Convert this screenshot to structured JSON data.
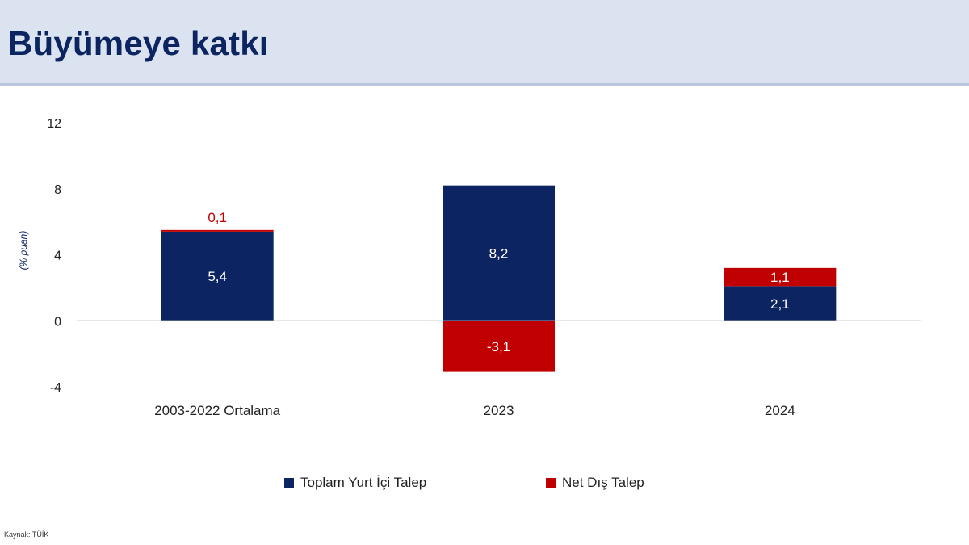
{
  "page": {
    "title": "Büyümeye katkı",
    "source": "Kaynak: TÜİK"
  },
  "colors": {
    "header_bg": "#dbe3f0",
    "domestic": "#0c2461",
    "external": "#c00000",
    "title": "#0c2560"
  },
  "chart_data": {
    "type": "bar",
    "stacked": true,
    "title": "Büyümeye katkı",
    "ylabel": "(% puan)",
    "xlabel": "",
    "ylim": [
      -4,
      12
    ],
    "yticks": [
      -4,
      0,
      4,
      8,
      12
    ],
    "categories": [
      "2003-2022 Ortalama",
      "2023",
      "2024"
    ],
    "series": [
      {
        "name": "Toplam Yurt İçi Talep",
        "values": [
          5.4,
          8.2,
          2.1
        ],
        "labels": [
          "5,4",
          "8,2",
          "2,1"
        ],
        "color": "#0c2461"
      },
      {
        "name": "Net Dış Talep",
        "values": [
          0.1,
          -3.1,
          1.1
        ],
        "labels": [
          "0,1",
          "-3,1",
          "1,1"
        ],
        "color": "#c00000"
      }
    ],
    "legend_position": "bottom",
    "grid": false
  }
}
